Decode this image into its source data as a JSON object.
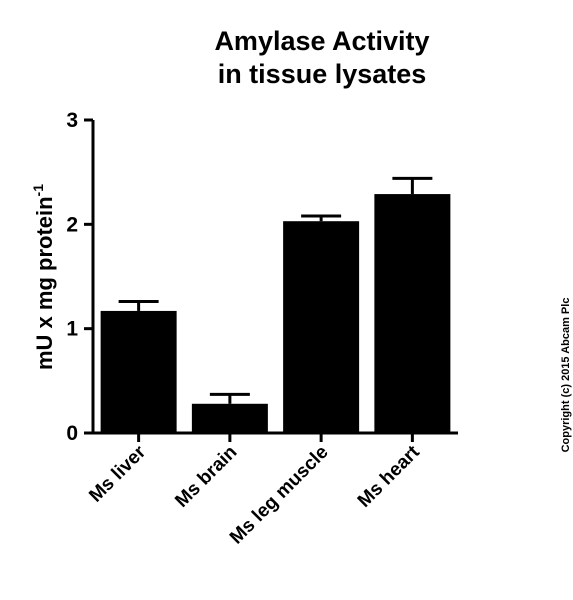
{
  "chart_data": {
    "type": "bar",
    "title_lines": [
      "Amylase Activity",
      "in tissue lysates"
    ],
    "categories": [
      "Ms liver",
      "Ms brain",
      "Ms leg muscle",
      "Ms heart"
    ],
    "values": [
      1.17,
      0.28,
      2.03,
      2.29
    ],
    "errors": [
      0.09,
      0.09,
      0.05,
      0.15
    ],
    "ylabel": "mU x mg protein",
    "ylabel_superscript": "-1",
    "xlabel": "",
    "ylim": [
      0,
      3
    ],
    "yticks": [
      "0",
      "1",
      "2",
      "3"
    ],
    "bar_color": "#000000",
    "grid": false,
    "legend": "none"
  },
  "copyright": "Copyright (c) 2015 Abcam Plc"
}
